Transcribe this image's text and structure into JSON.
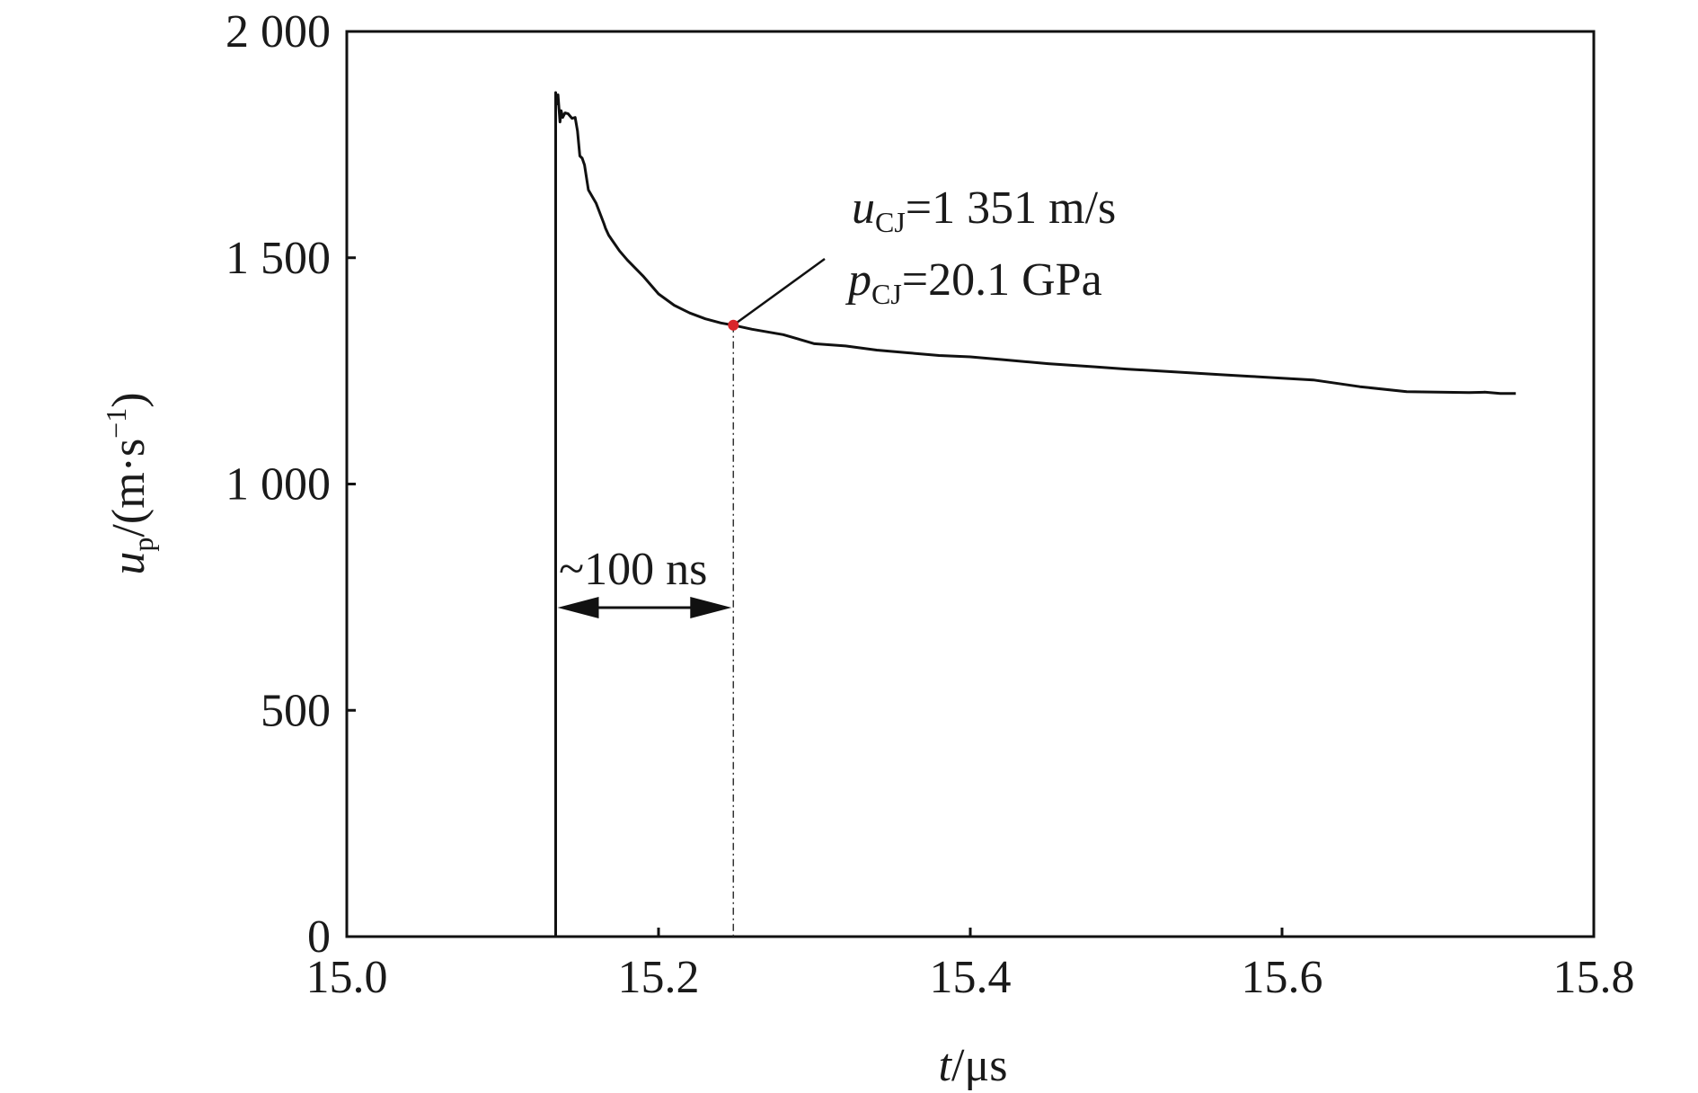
{
  "chart_data": {
    "type": "line",
    "xlabel": {
      "symbol": "t",
      "unit": "/μs"
    },
    "ylabel": {
      "symbol": "u",
      "subscript": "p",
      "unit_open": "/(m·s",
      "unit_sup": "−1",
      "unit_close": ")"
    },
    "xlim": [
      15.0,
      15.8
    ],
    "ylim": [
      0,
      2000
    ],
    "xticks": [
      15.0,
      15.2,
      15.4,
      15.6,
      15.8
    ],
    "xtick_labels": [
      "15.0",
      "15.2",
      "15.4",
      "15.6",
      "15.8"
    ],
    "yticks": [
      0,
      500,
      1000,
      1500,
      2000
    ],
    "ytick_labels": [
      "0",
      "500",
      "1 000",
      "1 500",
      "2 000"
    ],
    "grid": false,
    "colors": {
      "line": "#111111",
      "marker": "#d9262b"
    },
    "series": [
      {
        "x": [
          15.134,
          15.134,
          15.1343,
          15.1348,
          15.1355,
          15.1368,
          15.1375,
          15.1385,
          15.14,
          15.142,
          15.1445,
          15.1465,
          15.148,
          15.1495,
          15.151,
          15.1525,
          15.155,
          15.16,
          15.165,
          15.166,
          15.168,
          15.17,
          15.175,
          15.18,
          15.19,
          15.2,
          15.21,
          15.22,
          15.23,
          15.24,
          15.248,
          15.26,
          15.28,
          15.3,
          15.32,
          15.34,
          15.36,
          15.38,
          15.4,
          15.42,
          15.45,
          15.48,
          15.5,
          15.53,
          15.56,
          15.58,
          15.6,
          15.62,
          15.65,
          15.68,
          15.7,
          15.72,
          15.73,
          15.74,
          15.75
        ],
        "y": [
          0,
          1865,
          1850,
          1840,
          1860,
          1800,
          1825,
          1810,
          1820,
          1818,
          1808,
          1810,
          1780,
          1725,
          1720,
          1705,
          1650,
          1620,
          1575,
          1565,
          1550,
          1540,
          1515,
          1495,
          1460,
          1420,
          1395,
          1378,
          1365,
          1356,
          1351,
          1342,
          1330,
          1310,
          1305,
          1296,
          1290,
          1284,
          1281,
          1275,
          1266,
          1259,
          1254,
          1248,
          1242,
          1238,
          1234,
          1230,
          1215,
          1204,
          1203,
          1202,
          1203,
          1200,
          1200
        ]
      }
    ],
    "point": {
      "x": 15.248,
      "y": 1351
    },
    "annotations": {
      "ucj": {
        "symbol": "u",
        "subscript": "CJ",
        "text": "=1 351 m/s"
      },
      "pcj": {
        "symbol": "p",
        "subscript": "CJ",
        "text": "=20.1 GPa"
      },
      "interval": "~100 ns"
    }
  }
}
